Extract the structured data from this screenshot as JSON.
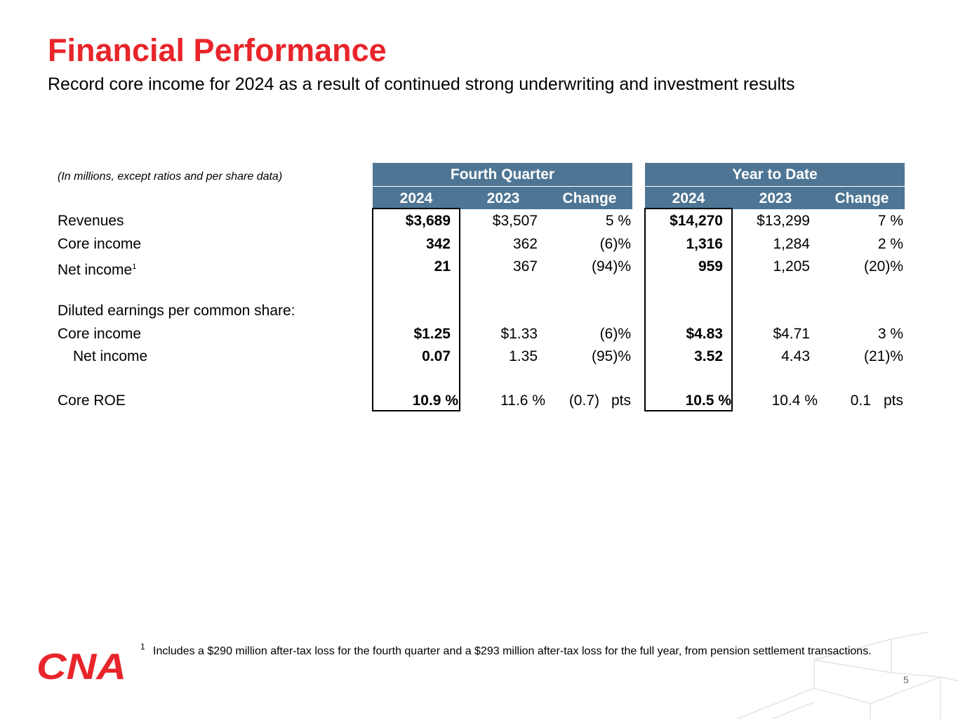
{
  "title": "Financial Performance",
  "subtitle": "Record core income for 2024 as a result of continued strong underwriting and investment results",
  "unit_note": "(In millions, except ratios and per share data)",
  "groups": {
    "fourth_quarter": "Fourth Quarter",
    "year_to_date": "Year to Date"
  },
  "columns": {
    "fq_2024": "2024",
    "fq_2023": "2023",
    "fq_change": "Change",
    "ytd_2024": "2024",
    "ytd_2023": "2023",
    "ytd_change": "Change"
  },
  "rows": {
    "revenues": {
      "label": "Revenues",
      "fq_2024": "$3,689",
      "fq_2023": "$3,507",
      "fq_change": "5 %",
      "ytd_2024": "$14,270",
      "ytd_2023": "$13,299",
      "ytd_change": "7 %"
    },
    "core_income": {
      "label": "Core income",
      "fq_2024": "342",
      "fq_2023": "362",
      "fq_change": "(6)%",
      "ytd_2024": "1,316",
      "ytd_2023": "1,284",
      "ytd_change": "2 %"
    },
    "net_income": {
      "label": "Net income",
      "footnote_ref": "1",
      "fq_2024": "21",
      "fq_2023": "367",
      "fq_change": "(94)%",
      "ytd_2024": "959",
      "ytd_2023": "1,205",
      "ytd_change": "(20)%"
    },
    "diluted_header": {
      "label": "Diluted earnings per common share:"
    },
    "eps_core_income": {
      "label": "Core income",
      "fq_2024": "$1.25",
      "fq_2023": "$1.33",
      "fq_change": "(6)%",
      "ytd_2024": "$4.83",
      "ytd_2023": "$4.71",
      "ytd_change": "3 %"
    },
    "eps_net_income": {
      "label": "Net income",
      "fq_2024": "0.07",
      "fq_2023": "1.35",
      "fq_change": "(95)%",
      "ytd_2024": "3.52",
      "ytd_2023": "4.43",
      "ytd_change": "(21)%"
    },
    "core_roe": {
      "label": "Core ROE",
      "fq_2024": "10.9 %",
      "fq_2023": "11.6 %",
      "fq_change": "(0.7)",
      "fq_change_unit": "pts",
      "ytd_2024": "10.5 %",
      "ytd_2023": "10.4 %",
      "ytd_change": "0.1",
      "ytd_change_unit": "pts"
    }
  },
  "footnote": {
    "number": "1",
    "text": "Includes a $290 million after-tax loss for the fourth quarter and a $293 million after-tax loss for the full year, from pension settlement transactions."
  },
  "logo_text": "CNA",
  "page_number": "5",
  "colors": {
    "title_red": "#e8252b",
    "header_blue": "#4e7694",
    "logo_red": "#e8252b"
  }
}
